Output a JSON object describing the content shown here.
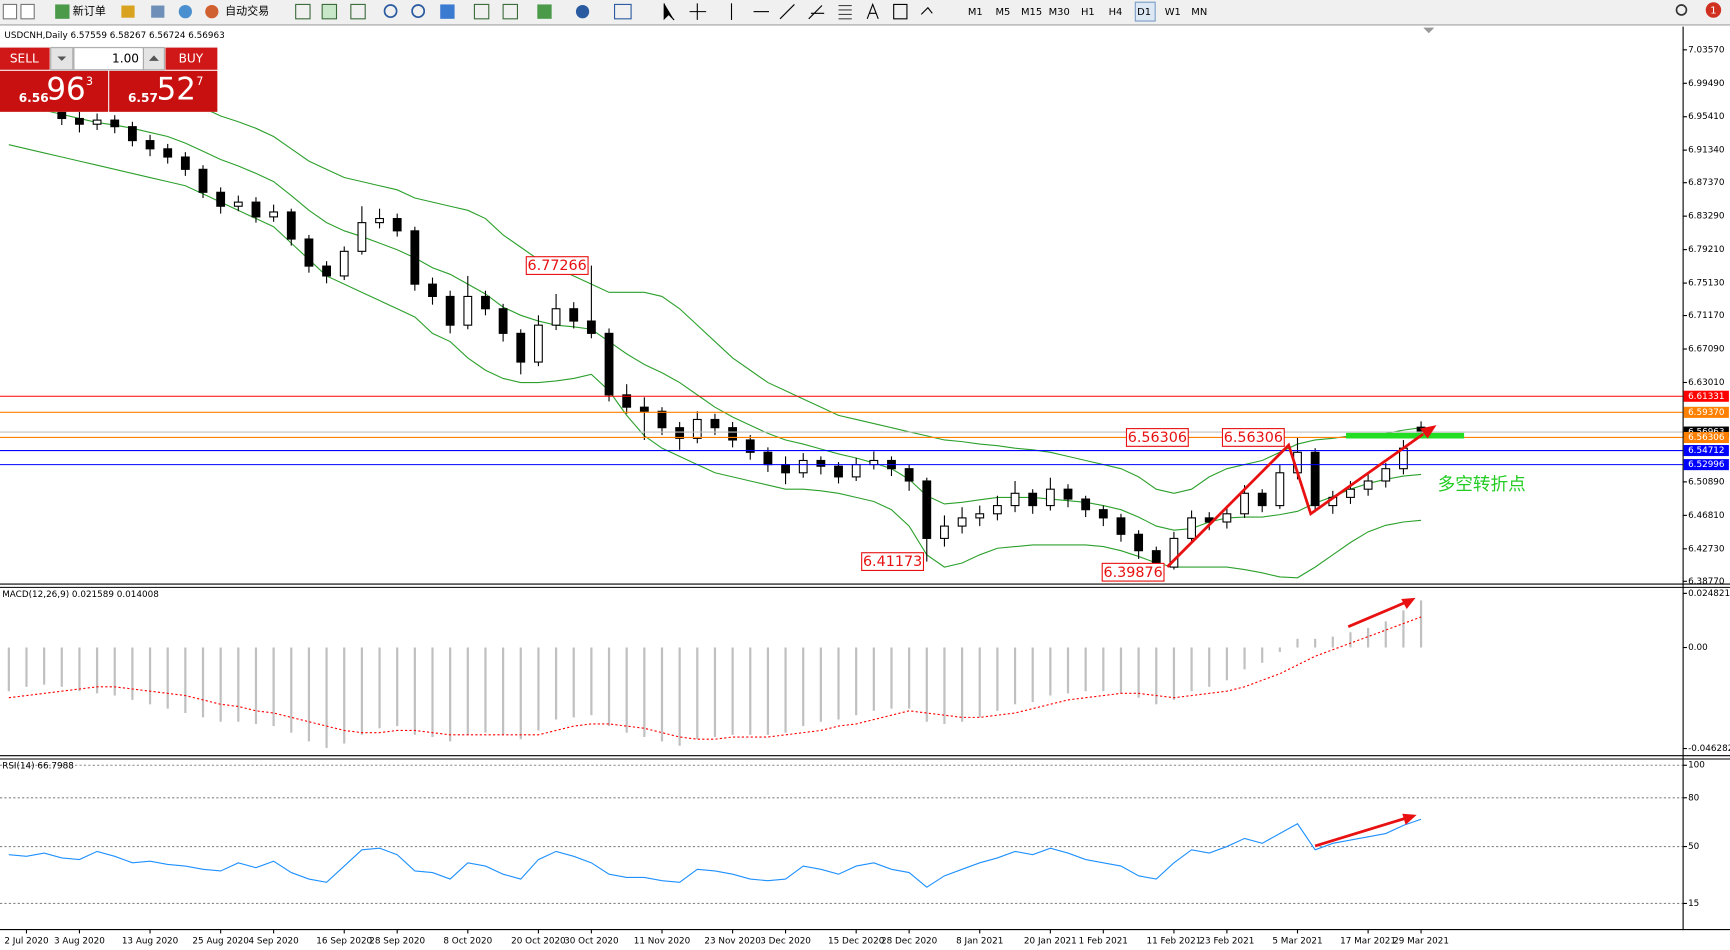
{
  "toolbar": {
    "new_order": "新订单",
    "auto_trading": "自动交易",
    "timeframes": [
      "M1",
      "M5",
      "M15",
      "M30",
      "H1",
      "H4",
      "D1",
      "W1",
      "MN"
    ],
    "badge": 1
  },
  "trade_panel": {
    "sell": "SELL",
    "buy": "BUY",
    "volume": "1.00",
    "sell_price": {
      "big": "6.56",
      "main": "96",
      "small": "3"
    },
    "buy_price": {
      "big": "6.57",
      "main": "52",
      "small": "7"
    }
  },
  "chart_data": [
    {
      "type": "candlestick",
      "title": "USDCNH,Daily 6.57559 6.58267 6.56724 6.56963",
      "up_color": "#ffffff",
      "down_color": "#000000",
      "open": [
        6.995,
        6.985,
        6.975,
        6.968,
        6.952,
        6.945,
        6.95,
        6.942,
        6.925,
        6.915,
        6.905,
        6.89,
        6.862,
        6.845,
        6.85,
        6.832,
        6.838,
        6.805,
        6.772,
        6.76,
        6.79,
        6.825,
        6.83,
        6.815,
        6.75,
        6.735,
        6.7,
        6.735,
        6.72,
        6.69,
        6.655,
        6.7,
        6.72,
        6.705,
        6.69,
        6.615,
        6.6,
        6.595,
        6.575,
        6.562,
        6.585,
        6.575,
        6.56,
        6.545,
        6.53,
        6.52,
        6.535,
        6.528,
        6.515,
        6.53,
        6.535,
        6.525,
        6.51,
        6.44,
        6.455,
        6.465,
        6.47,
        6.48,
        6.495,
        6.48,
        6.5,
        6.488,
        6.475,
        6.465,
        6.445,
        6.425,
        6.405,
        6.44,
        6.465,
        6.46,
        6.47,
        6.495,
        6.48,
        6.52,
        6.545,
        6.48,
        6.49,
        6.5,
        6.51,
        6.525,
        6.57559
      ],
      "high": [
        7.003,
        6.992,
        6.984,
        6.975,
        6.96,
        6.958,
        6.956,
        6.948,
        6.932,
        6.921,
        6.911,
        6.895,
        6.868,
        6.858,
        6.856,
        6.847,
        6.842,
        6.81,
        6.778,
        6.796,
        6.845,
        6.842,
        6.836,
        6.82,
        6.758,
        6.742,
        6.76,
        6.742,
        6.726,
        6.695,
        6.712,
        6.738,
        6.728,
        6.77266,
        6.696,
        6.628,
        6.612,
        6.6,
        6.582,
        6.595,
        6.592,
        6.582,
        6.566,
        6.551,
        6.54,
        6.544,
        6.54,
        6.533,
        6.538,
        6.546,
        6.54,
        6.53,
        6.514,
        6.468,
        6.478,
        6.48,
        6.492,
        6.51,
        6.5,
        6.514,
        6.506,
        6.492,
        6.48,
        6.47,
        6.45,
        6.43,
        6.448,
        6.474,
        6.472,
        6.48,
        6.505,
        6.5,
        6.53,
        6.56306,
        6.55,
        6.498,
        6.51,
        6.518,
        6.532,
        6.56,
        6.58267
      ],
      "low": [
        6.978,
        6.968,
        6.96,
        6.944,
        6.935,
        6.938,
        6.934,
        6.918,
        6.906,
        6.897,
        6.882,
        6.855,
        6.836,
        6.839,
        6.825,
        6.826,
        6.797,
        6.764,
        6.751,
        6.755,
        6.786,
        6.818,
        6.808,
        6.742,
        6.725,
        6.69,
        6.695,
        6.712,
        6.68,
        6.64,
        6.65,
        6.694,
        6.696,
        6.684,
        6.607,
        6.592,
        6.56,
        6.566,
        6.548,
        6.556,
        6.566,
        6.551,
        6.536,
        6.521,
        6.506,
        6.514,
        6.518,
        6.507,
        6.51,
        6.524,
        6.516,
        6.498,
        6.41173,
        6.43,
        6.446,
        6.455,
        6.462,
        6.472,
        6.47,
        6.474,
        6.478,
        6.466,
        6.455,
        6.436,
        6.415,
        6.39876,
        6.402,
        6.435,
        6.45,
        6.452,
        6.465,
        6.472,
        6.476,
        6.512,
        6.472,
        6.47,
        6.482,
        6.492,
        6.502,
        6.518,
        6.56724
      ],
      "close": [
        6.985,
        6.975,
        6.968,
        6.952,
        6.945,
        6.95,
        6.942,
        6.925,
        6.915,
        6.905,
        6.89,
        6.862,
        6.845,
        6.85,
        6.832,
        6.838,
        6.805,
        6.772,
        6.76,
        6.79,
        6.825,
        6.83,
        6.815,
        6.75,
        6.735,
        6.7,
        6.735,
        6.72,
        6.69,
        6.655,
        6.7,
        6.72,
        6.705,
        6.69,
        6.615,
        6.6,
        6.595,
        6.575,
        6.562,
        6.585,
        6.575,
        6.56,
        6.545,
        6.53,
        6.52,
        6.535,
        6.528,
        6.515,
        6.53,
        6.535,
        6.525,
        6.51,
        6.44,
        6.455,
        6.465,
        6.47,
        6.48,
        6.495,
        6.48,
        6.5,
        6.488,
        6.475,
        6.465,
        6.445,
        6.425,
        6.405,
        6.44,
        6.465,
        6.46,
        6.47,
        6.495,
        6.48,
        6.52,
        6.545,
        6.48,
        6.49,
        6.5,
        6.51,
        6.525,
        6.55,
        6.56963
      ],
      "bands": [
        {
          "color": "#2ca02c",
          "values": [
            7.02,
            7.02,
            7.015,
            7.01,
            7.005,
            7.0,
            6.998,
            6.995,
            6.99,
            6.985,
            6.975,
            6.965,
            6.955,
            6.948,
            6.94,
            6.93,
            6.915,
            6.9,
            6.89,
            6.88,
            6.875,
            6.87,
            6.865,
            6.855,
            6.85,
            6.845,
            6.84,
            6.83,
            6.81,
            6.795,
            6.78,
            6.77,
            6.76,
            6.75,
            6.74,
            6.74,
            6.74,
            6.735,
            6.72,
            6.7,
            6.68,
            6.66,
            6.645,
            6.63,
            6.62,
            6.61,
            6.6,
            6.59,
            6.585,
            6.58,
            6.575,
            6.57,
            6.565,
            6.56,
            6.558,
            6.555,
            6.553,
            6.55,
            6.548,
            6.545,
            6.54,
            6.535,
            6.53,
            6.525,
            6.515,
            6.5,
            6.495,
            6.5,
            6.515,
            6.525,
            6.53,
            6.535,
            6.545,
            6.555,
            6.56,
            6.562,
            6.565,
            6.566,
            6.568,
            6.572,
            6.575
          ]
        },
        {
          "color": "#2ca02c",
          "values": [
            6.97,
            6.967,
            6.962,
            6.957,
            6.952,
            6.947,
            6.944,
            6.94,
            6.935,
            6.93,
            6.922,
            6.912,
            6.902,
            6.894,
            6.885,
            6.875,
            6.858,
            6.84,
            6.825,
            6.815,
            6.808,
            6.8,
            6.792,
            6.782,
            6.77,
            6.762,
            6.75,
            6.738,
            6.722,
            6.712,
            6.705,
            6.7,
            6.698,
            6.695,
            6.68,
            6.665,
            6.652,
            6.642,
            6.63,
            6.615,
            6.6,
            6.588,
            6.578,
            6.568,
            6.56,
            6.555,
            6.549,
            6.543,
            6.538,
            6.532,
            6.525,
            6.512,
            6.492,
            6.482,
            6.484,
            6.487,
            6.49,
            6.49,
            6.49,
            6.488,
            6.486,
            6.484,
            6.48,
            6.475,
            6.466,
            6.455,
            6.45,
            6.452,
            6.46,
            6.465,
            6.466,
            6.466,
            6.469,
            6.473,
            6.483,
            6.491,
            6.5,
            6.507,
            6.512,
            6.516,
            6.518
          ]
        },
        {
          "color": "#2ca02c",
          "values": [
            6.92,
            6.915,
            6.91,
            6.905,
            6.9,
            6.895,
            6.89,
            6.885,
            6.88,
            6.875,
            6.87,
            6.86,
            6.85,
            6.84,
            6.83,
            6.82,
            6.8,
            6.78,
            6.76,
            6.75,
            6.74,
            6.73,
            6.72,
            6.71,
            6.69,
            6.68,
            6.66,
            6.645,
            6.635,
            6.63,
            6.63,
            6.632,
            6.635,
            6.64,
            6.62,
            6.59,
            6.565,
            6.55,
            6.54,
            6.53,
            6.52,
            6.515,
            6.51,
            6.505,
            6.5,
            6.5,
            6.498,
            6.495,
            6.49,
            6.485,
            6.475,
            6.455,
            6.42,
            6.405,
            6.41,
            6.42,
            6.428,
            6.43,
            6.432,
            6.432,
            6.432,
            6.432,
            6.43,
            6.425,
            6.418,
            6.41,
            6.405,
            6.405,
            6.405,
            6.405,
            6.402,
            6.398,
            6.393,
            6.392,
            6.405,
            6.42,
            6.435,
            6.448,
            6.456,
            6.46,
            6.462
          ]
        }
      ],
      "ylim": [
        6.385,
        7.06
      ],
      "yticks": [
        {
          "value": 7.0357,
          "label": "7.03570"
        },
        {
          "value": 6.9949,
          "label": "6.99490"
        },
        {
          "value": 6.9541,
          "label": "6.95410"
        },
        {
          "value": 6.9134,
          "label": "6.91340"
        },
        {
          "value": 6.8737,
          "label": "6.87370"
        },
        {
          "value": 6.8329,
          "label": "6.83290"
        },
        {
          "value": 6.7921,
          "label": "6.79210"
        },
        {
          "value": 6.7513,
          "label": "6.75130"
        },
        {
          "value": 6.7117,
          "label": "6.71170"
        },
        {
          "value": 6.6709,
          "label": "6.67090"
        },
        {
          "value": 6.6301,
          "label": "6.63010"
        },
        {
          "value": 6.5089,
          "label": "6.50890"
        },
        {
          "value": 6.4681,
          "label": "6.46810"
        },
        {
          "value": 6.4273,
          "label": "6.42730"
        },
        {
          "value": 6.3877,
          "label": "6.38770"
        }
      ],
      "price_lines": [
        {
          "value": 6.61331,
          "color": "#ff0000"
        },
        {
          "value": 6.5937,
          "label": "6.59370",
          "color": "#ff8000"
        },
        {
          "value": 6.56963,
          "color": "#c0c0c0",
          "label_color": "#000000"
        },
        {
          "value": 6.56306,
          "color": "#ff8000"
        },
        {
          "value": 6.54712,
          "color": "#0000ff"
        },
        {
          "value": 6.52996,
          "color": "#0000ff"
        }
      ],
      "annotations": [
        {
          "value": 6.77266
        },
        {
          "value": 6.41173
        },
        {
          "value": 6.39876
        },
        {
          "value": 6.56306
        },
        {
          "value": 6.56306
        },
        {
          "text": "多空转折点",
          "color": "#22cc22"
        }
      ]
    },
    {
      "type": "macd",
      "title": "MACD(12,26,9) 0.021589 0.014008",
      "series": [
        {
          "color": "#c0c0c0",
          "values": [
            -0.02,
            -0.018,
            -0.017,
            -0.018,
            -0.02,
            -0.021,
            -0.022,
            -0.024,
            -0.026,
            -0.028,
            -0.03,
            -0.032,
            -0.034,
            -0.034,
            -0.035,
            -0.036,
            -0.039,
            -0.043,
            -0.046,
            -0.044,
            -0.04,
            -0.037,
            -0.036,
            -0.04,
            -0.041,
            -0.043,
            -0.04,
            -0.039,
            -0.04,
            -0.042,
            -0.038,
            -0.033,
            -0.032,
            -0.031,
            -0.036,
            -0.039,
            -0.041,
            -0.043,
            -0.045,
            -0.042,
            -0.041,
            -0.04,
            -0.04,
            -0.04,
            -0.039,
            -0.036,
            -0.034,
            -0.033,
            -0.031,
            -0.029,
            -0.028,
            -0.028,
            -0.034,
            -0.035,
            -0.034,
            -0.032,
            -0.029,
            -0.026,
            -0.025,
            -0.022,
            -0.021,
            -0.02,
            -0.02,
            -0.021,
            -0.023,
            -0.026,
            -0.024,
            -0.02,
            -0.018,
            -0.015,
            -0.01,
            -0.007,
            -0.002,
            0.004,
            0.004,
            0.005,
            0.007,
            0.009,
            0.012,
            0.017,
            0.021589
          ]
        },
        {
          "color": "#ff0000",
          "values": [
            -0.023,
            -0.022,
            -0.021,
            -0.02,
            -0.019,
            -0.018,
            -0.018,
            -0.019,
            -0.02,
            -0.021,
            -0.022,
            -0.024,
            -0.026,
            -0.027,
            -0.029,
            -0.03,
            -0.032,
            -0.034,
            -0.036,
            -0.038,
            -0.039,
            -0.039,
            -0.038,
            -0.038,
            -0.039,
            -0.04,
            -0.04,
            -0.04,
            -0.04,
            -0.04,
            -0.04,
            -0.038,
            -0.036,
            -0.035,
            -0.035,
            -0.036,
            -0.037,
            -0.039,
            -0.041,
            -0.042,
            -0.042,
            -0.041,
            -0.041,
            -0.041,
            -0.04,
            -0.039,
            -0.038,
            -0.036,
            -0.035,
            -0.033,
            -0.031,
            -0.029,
            -0.03,
            -0.031,
            -0.032,
            -0.032,
            -0.031,
            -0.03,
            -0.028,
            -0.026,
            -0.024,
            -0.023,
            -0.022,
            -0.021,
            -0.021,
            -0.022,
            -0.023,
            -0.022,
            -0.021,
            -0.02,
            -0.018,
            -0.015,
            -0.012,
            -0.008,
            -0.004,
            -0.001,
            0.002,
            0.005,
            0.008,
            0.011,
            0.014008
          ]
        }
      ],
      "ylim": [
        -0.0493,
        0.0273
      ],
      "yticks": [
        {
          "value": 0.024821,
          "label": "0.024821"
        },
        {
          "value": 0,
          "label": "0.00"
        },
        {
          "value": -0.046282,
          "label": "-0.046282"
        }
      ]
    },
    {
      "type": "line",
      "title": "RSI(14) 66.7988",
      "series": [
        {
          "color": "#1e90ff",
          "values": [
            45,
            44,
            46,
            43,
            42,
            47,
            44,
            40,
            41,
            39,
            38,
            36,
            35,
            40,
            37,
            41,
            34,
            30,
            28,
            38,
            48,
            49,
            45,
            35,
            34,
            30,
            40,
            38,
            33,
            30,
            42,
            47,
            44,
            40,
            33,
            31,
            31,
            29,
            28,
            36,
            35,
            33,
            30,
            29,
            30,
            38,
            36,
            33,
            38,
            40,
            36,
            34,
            25,
            32,
            36,
            40,
            43,
            47,
            45,
            49,
            46,
            42,
            40,
            38,
            32,
            30,
            40,
            48,
            46,
            50,
            55,
            52,
            58,
            64,
            48,
            52,
            54,
            56,
            58,
            63,
            66.7988
          ]
        }
      ],
      "ylim": [
        0,
        103.5
      ],
      "yticks": [
        100,
        80,
        50,
        15
      ],
      "grid": true,
      "categories": [
        null,
        "2 Jul 2020",
        null,
        null,
        "3 Aug 2020",
        null,
        null,
        null,
        "13 Aug 2020",
        null,
        null,
        null,
        "25 Aug 2020",
        null,
        null,
        "4 Sep 2020",
        null,
        null,
        null,
        "16 Sep 2020",
        null,
        null,
        "28 Sep 2020",
        null,
        null,
        null,
        "8 Oct 2020",
        null,
        null,
        null,
        "20 Oct 2020",
        null,
        null,
        "30 Oct 2020",
        null,
        null,
        null,
        "11 Nov 2020",
        null,
        null,
        null,
        "23 Nov 2020",
        null,
        null,
        "3 Dec 2020",
        null,
        null,
        null,
        "15 Dec 2020",
        null,
        null,
        "28 Dec 2020",
        null,
        null,
        null,
        "8 Jan 2021",
        null,
        null,
        null,
        "20 Jan 2021",
        null,
        null,
        "1 Feb 2021",
        null,
        null,
        null,
        "11 Feb 2021",
        null,
        null,
        "23 Feb 2021",
        null,
        null,
        null,
        "5 Mar 2021",
        null,
        null,
        null,
        "17 Mar 2021",
        null,
        null,
        "29 Mar 2021"
      ]
    }
  ]
}
